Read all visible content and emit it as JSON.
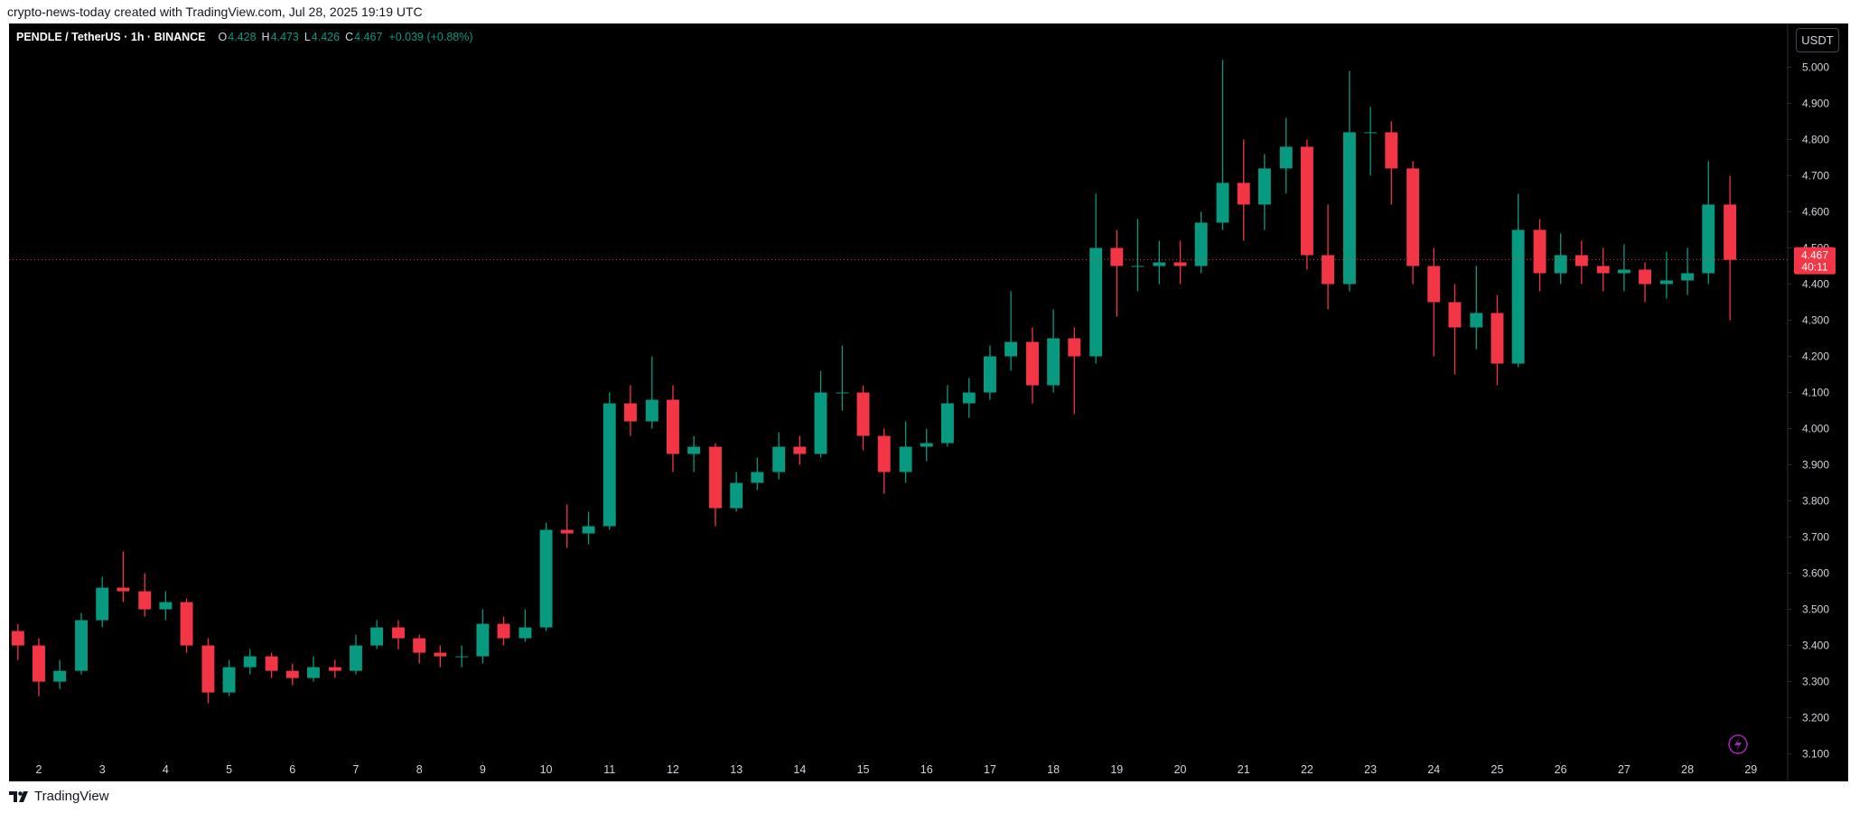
{
  "top_note": "crypto-news-today created with TradingView.com, Jul 28, 2025 19:19 UTC",
  "footer": {
    "brand": "TradingView"
  },
  "currency_button": "USDT",
  "legend": {
    "symbol": "PENDLE / TetherUS · 1h · BINANCE",
    "o_label": "O",
    "o": "4.428",
    "h_label": "H",
    "h": "4.473",
    "l_label": "L",
    "l": "4.426",
    "c_label": "C",
    "c": "4.467",
    "change": "+0.039 (+0.88%)"
  },
  "chart_data": {
    "type": "candlestick",
    "up_color": "#089981",
    "down_color": "#f23645",
    "grid": false,
    "countdown": "40:11",
    "xlim": [
      1.53,
      29.58
    ],
    "xticks": [
      2,
      3,
      4,
      5,
      6,
      7,
      8,
      9,
      10,
      11,
      12,
      13,
      14,
      15,
      16,
      17,
      18,
      19,
      20,
      21,
      22,
      23,
      24,
      25,
      26,
      27,
      28,
      29
    ],
    "ylim": [
      3.079,
      5.121
    ],
    "yticks": [
      {
        "value": 3.1,
        "label": "3.100"
      },
      {
        "value": 3.2,
        "label": "3.200"
      },
      {
        "value": 3.3,
        "label": "3.300"
      },
      {
        "value": 3.4,
        "label": "3.400"
      },
      {
        "value": 3.5,
        "label": "3.500"
      },
      {
        "value": 3.6,
        "label": "3.600"
      },
      {
        "value": 3.7,
        "label": "3.700"
      },
      {
        "value": 3.8,
        "label": "3.800"
      },
      {
        "value": 3.9,
        "label": "3.900"
      },
      {
        "value": 4.0,
        "label": "4.000"
      },
      {
        "value": 4.1,
        "label": "4.100"
      },
      {
        "value": 4.2,
        "label": "4.200"
      },
      {
        "value": 4.3,
        "label": "4.300"
      },
      {
        "value": 4.4,
        "label": "4.400"
      },
      {
        "value": 4.5,
        "label": "4.500"
      },
      {
        "value": 4.6,
        "label": "4.600"
      },
      {
        "value": 4.7,
        "label": "4.700"
      },
      {
        "value": 4.8,
        "label": "4.800"
      },
      {
        "value": 4.9,
        "label": "4.900"
      },
      {
        "value": 5.0,
        "label": "5.000"
      }
    ],
    "x": [
      1.67,
      2,
      2.33,
      2.67,
      3,
      3.33,
      3.67,
      4,
      4.33,
      4.67,
      5,
      5.33,
      5.67,
      6,
      6.33,
      6.67,
      7,
      7.33,
      7.67,
      8,
      8.33,
      8.67,
      9,
      9.33,
      9.67,
      10,
      10.33,
      10.67,
      11,
      11.33,
      11.67,
      12,
      12.33,
      12.67,
      13,
      13.33,
      13.67,
      14,
      14.33,
      14.67,
      15,
      15.33,
      15.67,
      16,
      16.33,
      16.67,
      17,
      17.33,
      17.67,
      18,
      18.33,
      18.67,
      19,
      19.33,
      19.67,
      20,
      20.33,
      20.67,
      21,
      21.33,
      21.67,
      22,
      22.33,
      22.67,
      23,
      23.33,
      23.67,
      24,
      24.33,
      24.67,
      25,
      25.33,
      25.67,
      26,
      26.33,
      26.67,
      27,
      27.33,
      27.67,
      28,
      28.33,
      28.67
    ],
    "open": [
      3.44,
      3.4,
      3.3,
      3.33,
      3.47,
      3.56,
      3.55,
      3.5,
      3.52,
      3.4,
      3.27,
      3.34,
      3.37,
      3.33,
      3.31,
      3.34,
      3.33,
      3.4,
      3.45,
      3.42,
      3.38,
      3.37,
      3.37,
      3.46,
      3.42,
      3.45,
      3.72,
      3.71,
      3.73,
      4.07,
      4.02,
      4.08,
      3.93,
      3.95,
      3.78,
      3.85,
      3.88,
      3.95,
      3.93,
      4.1,
      4.1,
      3.98,
      3.88,
      3.95,
      3.96,
      4.07,
      4.1,
      4.2,
      4.24,
      4.12,
      4.25,
      4.2,
      4.5,
      4.45,
      4.45,
      4.46,
      4.45,
      4.57,
      4.68,
      4.62,
      4.72,
      4.78,
      4.48,
      4.4,
      4.82,
      4.82,
      4.72,
      4.45,
      4.35,
      4.28,
      4.32,
      4.18,
      4.55,
      4.43,
      4.48,
      4.45,
      4.43,
      4.44,
      4.4,
      4.41,
      4.43,
      4.62
    ],
    "high": [
      3.46,
      3.42,
      3.36,
      3.49,
      3.59,
      3.66,
      3.6,
      3.55,
      3.53,
      3.42,
      3.36,
      3.39,
      3.38,
      3.35,
      3.37,
      3.36,
      3.43,
      3.47,
      3.47,
      3.43,
      3.4,
      3.4,
      3.5,
      3.48,
      3.5,
      3.74,
      3.79,
      3.77,
      4.1,
      4.12,
      4.2,
      4.12,
      3.98,
      3.96,
      3.88,
      3.92,
      3.99,
      3.98,
      4.16,
      4.23,
      4.12,
      4.0,
      4.02,
      4.0,
      4.12,
      4.14,
      4.23,
      4.38,
      4.28,
      4.33,
      4.28,
      4.65,
      4.55,
      4.58,
      4.52,
      4.52,
      4.6,
      5.02,
      4.8,
      4.76,
      4.86,
      4.8,
      4.62,
      4.99,
      4.89,
      4.85,
      4.74,
      4.5,
      4.4,
      4.45,
      4.37,
      4.65,
      4.58,
      4.54,
      4.52,
      4.5,
      4.51,
      4.46,
      4.49,
      4.5,
      4.74,
      4.7
    ],
    "low": [
      3.36,
      3.26,
      3.28,
      3.32,
      3.45,
      3.52,
      3.48,
      3.47,
      3.38,
      3.24,
      3.26,
      3.32,
      3.31,
      3.29,
      3.3,
      3.31,
      3.32,
      3.39,
      3.39,
      3.35,
      3.34,
      3.34,
      3.35,
      3.4,
      3.41,
      3.44,
      3.67,
      3.68,
      3.72,
      3.98,
      4.0,
      3.88,
      3.88,
      3.73,
      3.77,
      3.83,
      3.86,
      3.9,
      3.92,
      4.05,
      3.94,
      3.82,
      3.85,
      3.91,
      3.95,
      4.03,
      4.08,
      4.16,
      4.07,
      4.1,
      4.04,
      4.18,
      4.31,
      4.38,
      4.4,
      4.4,
      4.43,
      4.55,
      4.52,
      4.55,
      4.65,
      4.44,
      4.33,
      4.38,
      4.7,
      4.62,
      4.4,
      4.2,
      4.15,
      4.22,
      4.12,
      4.17,
      4.38,
      4.4,
      4.4,
      4.38,
      4.38,
      4.35,
      4.36,
      4.37,
      4.4,
      4.3
    ],
    "close": [
      3.4,
      3.3,
      3.33,
      3.47,
      3.56,
      3.55,
      3.5,
      3.52,
      3.4,
      3.27,
      3.34,
      3.37,
      3.33,
      3.31,
      3.34,
      3.33,
      3.4,
      3.45,
      3.42,
      3.38,
      3.37,
      3.37,
      3.46,
      3.42,
      3.45,
      3.72,
      3.71,
      3.73,
      4.07,
      4.02,
      4.08,
      3.93,
      3.95,
      3.78,
      3.85,
      3.88,
      3.95,
      3.93,
      4.1,
      4.1,
      3.98,
      3.88,
      3.95,
      3.96,
      4.07,
      4.1,
      4.2,
      4.24,
      4.12,
      4.25,
      4.2,
      4.5,
      4.45,
      4.45,
      4.46,
      4.45,
      4.57,
      4.68,
      4.62,
      4.72,
      4.78,
      4.48,
      4.4,
      4.82,
      4.82,
      4.72,
      4.45,
      4.35,
      4.28,
      4.32,
      4.18,
      4.55,
      4.43,
      4.48,
      4.45,
      4.43,
      4.44,
      4.4,
      4.41,
      4.43,
      4.62,
      4.467
    ]
  }
}
